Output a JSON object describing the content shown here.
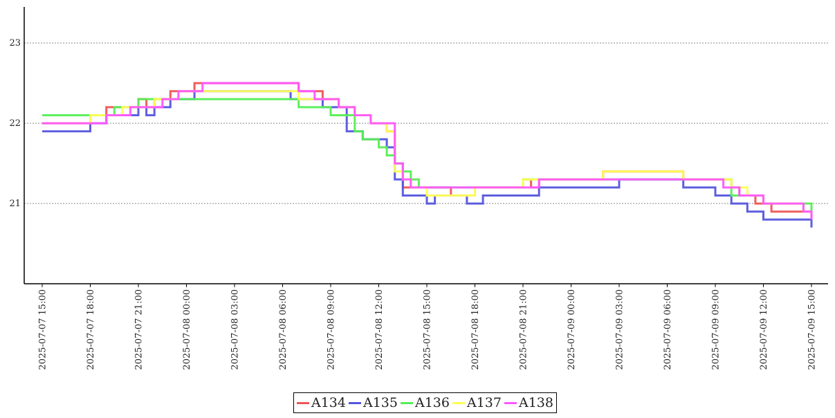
{
  "chart_data": {
    "type": "line",
    "x_axis": {
      "type": "time",
      "tick_labels": [
        "2025-07-07  15:00",
        "2025-07-07  18:00",
        "2025-07-07  21:00",
        "2025-07-08  00:00",
        "2025-07-08  03:00",
        "2025-07-08  06:00",
        "2025-07-08  09:00",
        "2025-07-08  12:00",
        "2025-07-08  15:00",
        "2025-07-08  18:00",
        "2025-07-08  21:00",
        "2025-07-09  00:00",
        "2025-07-09  03:00",
        "2025-07-09  06:00",
        "2025-07-09  09:00",
        "2025-07-09  12:00",
        "2025-07-09  15:00"
      ],
      "range": [
        "2025-07-07 15:00",
        "2025-07-09 15:00"
      ]
    },
    "y_axis": {
      "tick_labels": [
        "21",
        "22",
        "23"
      ],
      "ticks": [
        21,
        22,
        23
      ],
      "range": [
        20,
        23.45
      ]
    },
    "grid": "horizontal dotted",
    "legend_position": "bottom-center",
    "series": [
      {
        "name": "A134",
        "color": "#ee5555",
        "x": [
          "2025-07-07 15:00",
          "2025-07-07 18:00",
          "2025-07-07 19:00",
          "2025-07-07 21:00",
          "2025-07-07 21:30",
          "2025-07-07 22:00",
          "2025-07-07 23:00",
          "2025-07-08 00:30",
          "2025-07-08 07:00",
          "2025-07-08 08:30",
          "2025-07-08 09:30",
          "2025-07-08 10:30",
          "2025-07-08 11:30",
          "2025-07-08 12:30",
          "2025-07-08 13:00",
          "2025-07-08 13:30",
          "2025-07-08 16:30",
          "2025-07-08 18:00",
          "2025-07-08 21:00",
          "2025-07-08 21:30",
          "2025-07-08 22:00",
          "2025-07-09 02:00",
          "2025-07-09 07:00",
          "2025-07-09 10:00",
          "2025-07-09 10:30",
          "2025-07-09 11:30",
          "2025-07-09 12:30",
          "2025-07-09 15:00"
        ],
        "y": [
          22.0,
          22.1,
          22.2,
          22.3,
          22.2,
          22.3,
          22.4,
          22.5,
          22.4,
          22.3,
          22.2,
          22.1,
          22.0,
          21.9,
          21.5,
          21.2,
          21.1,
          21.2,
          21.3,
          21.2,
          21.3,
          21.4,
          21.3,
          21.2,
          21.1,
          21.0,
          20.9,
          20.8
        ]
      },
      {
        "name": "A135",
        "color": "#5555dd",
        "x": [
          "2025-07-07 15:00",
          "2025-07-07 18:00",
          "2025-07-07 19:00",
          "2025-07-07 21:00",
          "2025-07-07 21:30",
          "2025-07-07 22:00",
          "2025-07-07 23:00",
          "2025-07-08 00:30",
          "2025-07-08 06:30",
          "2025-07-08 07:30",
          "2025-07-08 08:30",
          "2025-07-08 10:00",
          "2025-07-08 11:00",
          "2025-07-08 12:30",
          "2025-07-08 13:00",
          "2025-07-08 13:30",
          "2025-07-08 15:00",
          "2025-07-08 15:30",
          "2025-07-08 17:30",
          "2025-07-08 18:30",
          "2025-07-08 21:00",
          "2025-07-08 22:00",
          "2025-07-09 03:00",
          "2025-07-09 07:00",
          "2025-07-09 09:00",
          "2025-07-09 10:00",
          "2025-07-09 11:00",
          "2025-07-09 12:00",
          "2025-07-09 14:00",
          "2025-07-09 15:00"
        ],
        "y": [
          21.9,
          22.0,
          22.1,
          22.2,
          22.1,
          22.2,
          22.3,
          22.4,
          22.3,
          22.3,
          22.2,
          21.9,
          21.8,
          21.7,
          21.3,
          21.1,
          21.0,
          21.1,
          21.0,
          21.1,
          21.1,
          21.2,
          21.3,
          21.2,
          21.1,
          21.0,
          20.9,
          20.8,
          20.8,
          20.7
        ]
      },
      {
        "name": "A136",
        "color": "#55ee55",
        "x": [
          "2025-07-07 15:00",
          "2025-07-07 19:30",
          "2025-07-07 21:00",
          "2025-07-08 00:00",
          "2025-07-08 07:00",
          "2025-07-08 08:30",
          "2025-07-08 09:00",
          "2025-07-08 10:30",
          "2025-07-08 11:00",
          "2025-07-08 12:00",
          "2025-07-08 12:30",
          "2025-07-08 13:00",
          "2025-07-08 13:30",
          "2025-07-08 14:00",
          "2025-07-08 14:30",
          "2025-07-08 17:00",
          "2025-07-08 21:00",
          "2025-07-09 03:00",
          "2025-07-09 07:00",
          "2025-07-09 10:00",
          "2025-07-09 11:00",
          "2025-07-09 12:00",
          "2025-07-09 15:00"
        ],
        "y": [
          22.1,
          22.2,
          22.3,
          22.3,
          22.2,
          22.2,
          22.1,
          21.9,
          21.8,
          21.7,
          21.6,
          21.5,
          21.4,
          21.3,
          21.2,
          21.2,
          21.3,
          21.3,
          21.3,
          21.1,
          21.1,
          21.0,
          20.9
        ]
      },
      {
        "name": "A137",
        "color": "#ffff55",
        "x": [
          "2025-07-07 15:00",
          "2025-07-07 18:00",
          "2025-07-07 20:00",
          "2025-07-07 22:00",
          "2025-07-07 23:30",
          "2025-07-08 00:30",
          "2025-07-08 07:00",
          "2025-07-08 08:30",
          "2025-07-08 09:30",
          "2025-07-08 10:30",
          "2025-07-08 11:30",
          "2025-07-08 12:30",
          "2025-07-08 13:00",
          "2025-07-08 13:30",
          "2025-07-08 14:00",
          "2025-07-08 15:00",
          "2025-07-08 18:00",
          "2025-07-08 21:00",
          "2025-07-08 22:00",
          "2025-07-09 02:00",
          "2025-07-09 07:00",
          "2025-07-09 10:00",
          "2025-07-09 11:00",
          "2025-07-09 12:00",
          "2025-07-09 14:30",
          "2025-07-09 15:00"
        ],
        "y": [
          22.0,
          22.1,
          22.2,
          22.3,
          22.4,
          22.4,
          22.3,
          22.3,
          22.2,
          22.1,
          22.0,
          21.9,
          21.4,
          21.3,
          21.2,
          21.1,
          21.2,
          21.3,
          21.3,
          21.4,
          21.3,
          21.2,
          21.1,
          21.0,
          20.9,
          20.9
        ]
      },
      {
        "name": "A138",
        "color": "#ff55ff",
        "x": [
          "2025-07-07 15:00",
          "2025-07-07 18:00",
          "2025-07-07 19:00",
          "2025-07-07 20:30",
          "2025-07-07 22:30",
          "2025-07-07 23:30",
          "2025-07-08 01:00",
          "2025-07-08 07:00",
          "2025-07-08 08:00",
          "2025-07-08 09:30",
          "2025-07-08 10:30",
          "2025-07-08 11:30",
          "2025-07-08 13:00",
          "2025-07-08 13:30",
          "2025-07-08 14:00",
          "2025-07-08 18:00",
          "2025-07-08 21:00",
          "2025-07-08 22:00",
          "2025-07-09 01:00",
          "2025-07-09 03:00",
          "2025-07-09 07:00",
          "2025-07-09 09:30",
          "2025-07-09 10:30",
          "2025-07-09 12:00",
          "2025-07-09 14:30",
          "2025-07-09 15:00"
        ],
        "y": [
          22.0,
          22.0,
          22.1,
          22.2,
          22.3,
          22.4,
          22.5,
          22.4,
          22.3,
          22.2,
          22.1,
          22.0,
          21.5,
          21.3,
          21.2,
          21.2,
          21.2,
          21.3,
          21.3,
          21.3,
          21.3,
          21.2,
          21.1,
          21.0,
          20.9,
          20.8
        ]
      }
    ]
  }
}
